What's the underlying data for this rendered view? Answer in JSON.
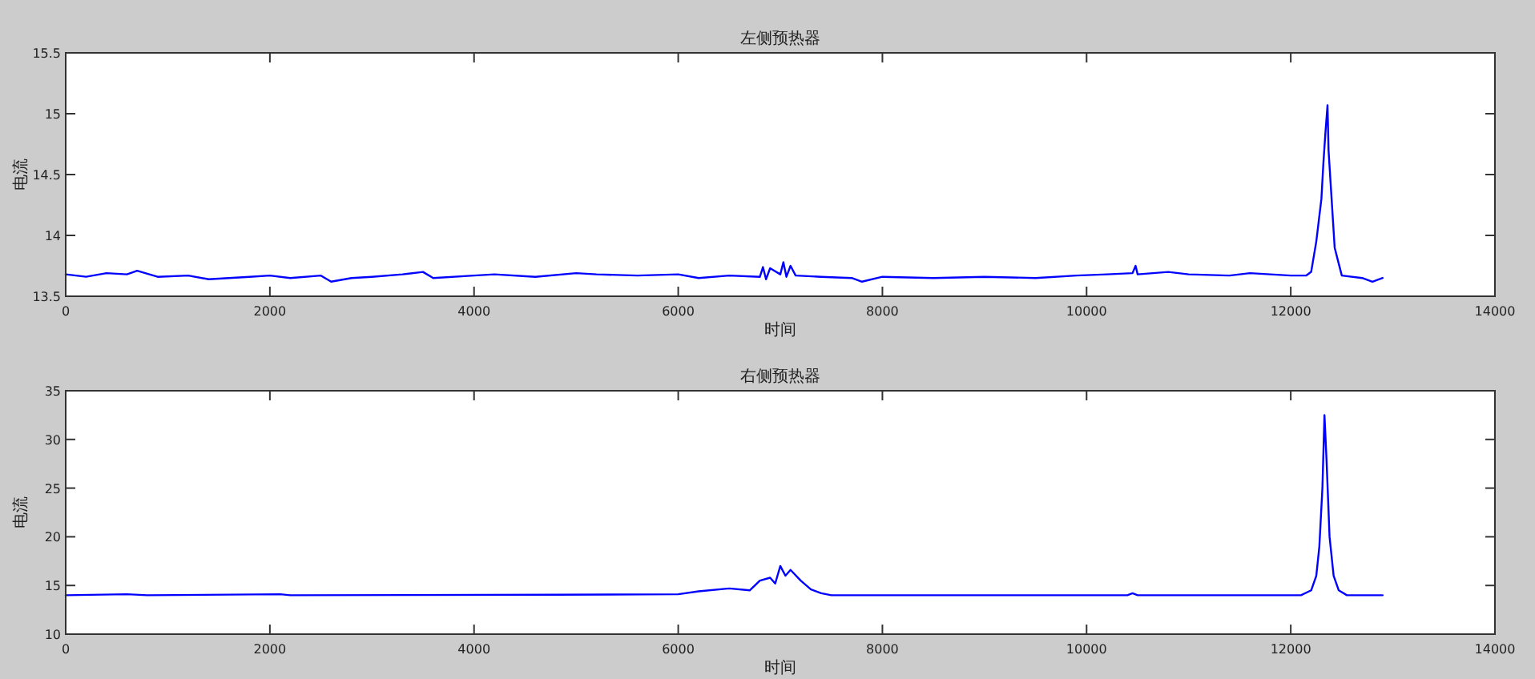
{
  "chart_data": [
    {
      "type": "line",
      "title": "左侧预热器",
      "xlabel": "时间",
      "ylabel": "电流",
      "xlim": [
        0,
        14000
      ],
      "ylim": [
        13.5,
        15.5
      ],
      "xticks": [
        0,
        2000,
        4000,
        6000,
        8000,
        10000,
        12000,
        14000
      ],
      "yticks": [
        13.5,
        14,
        14.5,
        15,
        15.5
      ],
      "x": [
        0,
        200,
        400,
        600,
        700,
        900,
        1200,
        1400,
        1800,
        2000,
        2200,
        2500,
        2600,
        2800,
        3000,
        3300,
        3500,
        3600,
        4000,
        4200,
        4600,
        5000,
        5200,
        5600,
        6000,
        6200,
        6500,
        6800,
        6830,
        6860,
        6900,
        7000,
        7030,
        7060,
        7100,
        7150,
        7400,
        7700,
        7800,
        8000,
        8500,
        9000,
        9500,
        9900,
        10200,
        10450,
        10480,
        10500,
        10800,
        11000,
        11400,
        11600,
        12000,
        12150,
        12200,
        12250,
        12300,
        12320,
        12340,
        12360,
        12370,
        12400,
        12430,
        12460,
        12500,
        12700,
        12800,
        12900
      ],
      "series": [
        {
          "color": "#0000ff",
          "values": [
            13.68,
            13.66,
            13.69,
            13.68,
            13.71,
            13.66,
            13.67,
            13.64,
            13.66,
            13.67,
            13.65,
            13.67,
            13.62,
            13.65,
            13.66,
            13.68,
            13.7,
            13.65,
            13.67,
            13.68,
            13.66,
            13.69,
            13.68,
            13.67,
            13.68,
            13.65,
            13.67,
            13.66,
            13.74,
            13.64,
            13.73,
            13.68,
            13.78,
            13.66,
            13.75,
            13.67,
            13.66,
            13.65,
            13.62,
            13.66,
            13.65,
            13.66,
            13.65,
            13.67,
            13.68,
            13.69,
            13.75,
            13.68,
            13.7,
            13.68,
            13.67,
            13.69,
            13.67,
            13.67,
            13.7,
            13.95,
            14.3,
            14.6,
            14.85,
            15.07,
            14.7,
            14.3,
            13.9,
            13.8,
            13.67,
            13.65,
            13.62,
            13.65
          ]
        }
      ]
    },
    {
      "type": "line",
      "title": "右侧预热器",
      "xlabel": "时间",
      "ylabel": "电流",
      "xlim": [
        0,
        14000
      ],
      "ylim": [
        10,
        35
      ],
      "xticks": [
        0,
        2000,
        4000,
        6000,
        8000,
        10000,
        12000,
        14000
      ],
      "yticks": [
        10,
        15,
        20,
        25,
        30,
        35
      ],
      "x": [
        0,
        600,
        800,
        2100,
        2200,
        4800,
        6000,
        6200,
        6500,
        6700,
        6800,
        6900,
        6950,
        7000,
        7050,
        7100,
        7200,
        7300,
        7400,
        7500,
        10400,
        10450,
        10500,
        12100,
        12200,
        12250,
        12280,
        12310,
        12330,
        12350,
        12380,
        12420,
        12470,
        12550,
        12900
      ],
      "series": [
        {
          "color": "#0000ff",
          "values": [
            14,
            14.1,
            14,
            14.1,
            14,
            14.05,
            14.1,
            14.4,
            14.7,
            14.5,
            15.5,
            15.8,
            15.2,
            17,
            16,
            16.6,
            15.5,
            14.6,
            14.2,
            14,
            14,
            14.2,
            14,
            14,
            14.5,
            16,
            19,
            25,
            32.5,
            28,
            20,
            16,
            14.5,
            14,
            14
          ]
        }
      ]
    }
  ]
}
